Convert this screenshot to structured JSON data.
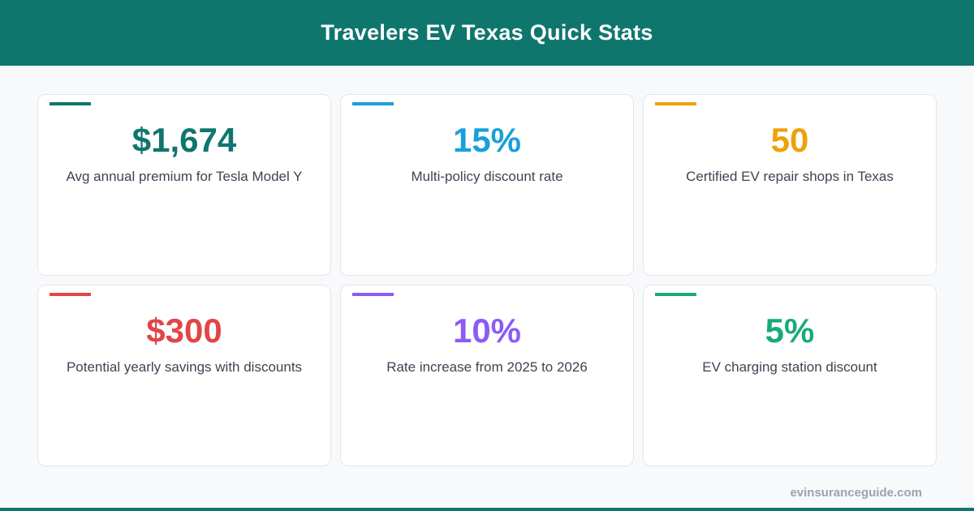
{
  "header": {
    "title": "Travelers EV Texas Quick Stats"
  },
  "cards": [
    {
      "value": "$1,674",
      "label": "Avg annual premium for Tesla Model Y",
      "color": "#0f766e"
    },
    {
      "value": "15%",
      "label": "Multi-policy discount rate",
      "color": "#1a9fd8"
    },
    {
      "value": "50",
      "label": "Certified EV repair shops in Texas",
      "color": "#eea20a"
    },
    {
      "value": "$300",
      "label": "Potential yearly savings with discounts",
      "color": "#e04646"
    },
    {
      "value": "10%",
      "label": "Rate increase from 2025 to 2026",
      "color": "#8b5cf6"
    },
    {
      "value": "5%",
      "label": "EV charging station discount",
      "color": "#1aaa7a"
    }
  ],
  "footer": {
    "source": "evinsuranceguide.com"
  }
}
